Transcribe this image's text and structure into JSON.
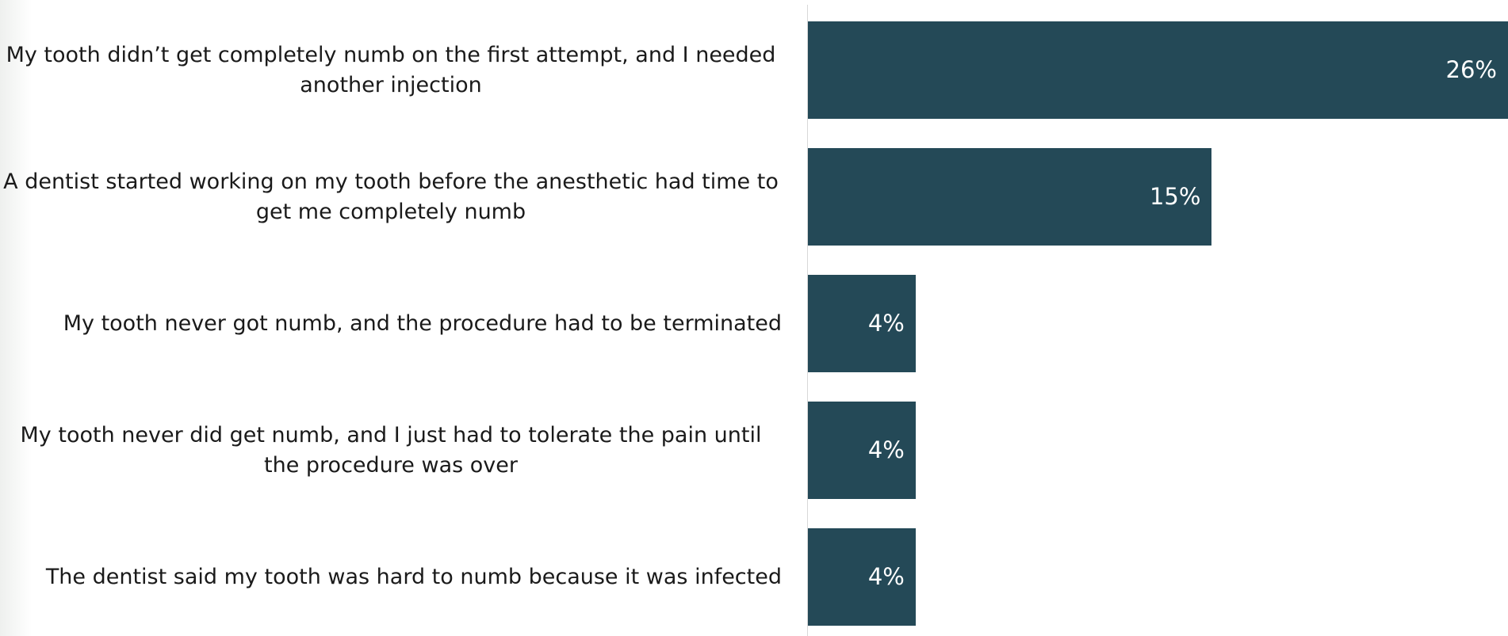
{
  "chart_data": {
    "type": "bar",
    "orientation": "horizontal",
    "categories": [
      "My tooth didn’t get completely numb on the first attempt, and I needed another injection",
      "A dentist started working on my tooth before the anesthetic had time to get me completely numb",
      "My tooth never got numb, and the procedure had to be terminated",
      "My tooth never did get numb, and I just had to tolerate the pain until the procedure was over",
      "The dentist said my tooth was hard to numb because it was infected"
    ],
    "values": [
      26,
      15,
      4,
      4,
      4
    ],
    "value_labels": [
      "26%",
      "15%",
      "4%",
      "4%",
      "4%"
    ],
    "color": "#244957"
  }
}
